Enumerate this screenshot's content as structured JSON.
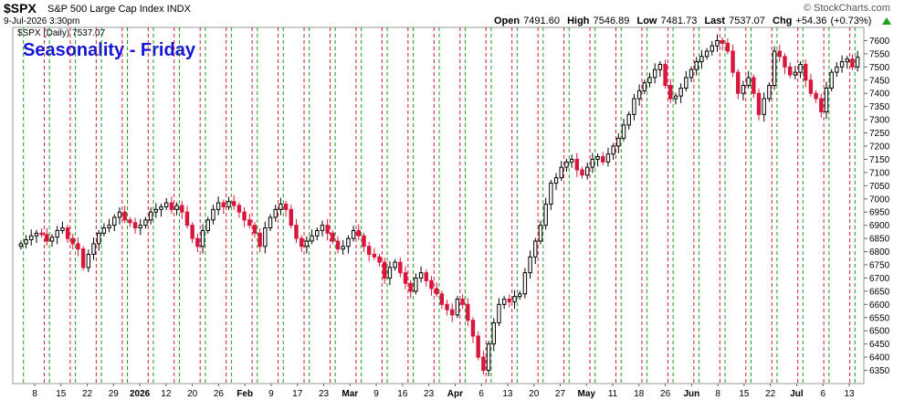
{
  "header": {
    "symbol": "$SPX",
    "description": "S&P 500 Large Cap Index  INDX",
    "date": "9-Jul-2026 3:30pm",
    "open_label": "Open",
    "open": "7491.60",
    "high_label": "High",
    "high": "7546.89",
    "low_label": "Low",
    "low": "7481.73",
    "last_label": "Last",
    "last": "7537.07",
    "chg_label": "Chg",
    "chg": "+54.36 (+0.73%)",
    "watermark": "© StockCharts.com",
    "legend": "$SPX (Daily) 7537.07",
    "overlay_title": "Seasonality - Friday"
  },
  "colors": {
    "up_candle": "#ffffff",
    "down_candle": "#d8163c",
    "friday_line": "#d8163c",
    "monday_line": "#1e9c1e",
    "overlay_title": "#1414d8",
    "chg_positive": "#20a020"
  },
  "chart_data": {
    "type": "candlestick",
    "title": "Seasonality - Friday",
    "ylim": [
      6300,
      7650
    ],
    "y_ticks": [
      6350,
      6400,
      6450,
      6500,
      6550,
      6600,
      6650,
      6700,
      6750,
      6800,
      6850,
      6900,
      6950,
      7000,
      7050,
      7100,
      7150,
      7200,
      7250,
      7300,
      7350,
      7400,
      7450,
      7500,
      7550,
      7600
    ],
    "x_tick_labels": [
      "8",
      "15",
      "22",
      "29",
      "2026",
      "12",
      "20",
      "26",
      "Feb",
      "9",
      "17",
      "23",
      "Mar",
      "9",
      "16",
      "23",
      "Apr",
      "6",
      "13",
      "20",
      "27",
      "May",
      "11",
      "18",
      "26",
      "Jun",
      "8",
      "15",
      "22",
      "Jul",
      "6",
      "13"
    ],
    "close": [
      6830,
      6845,
      6860,
      6870,
      6865,
      6840,
      6855,
      6880,
      6890,
      6850,
      6830,
      6810,
      6740,
      6790,
      6830,
      6870,
      6890,
      6900,
      6930,
      6950,
      6920,
      6910,
      6890,
      6900,
      6920,
      6950,
      6960,
      6970,
      6985,
      6960,
      6975,
      6950,
      6900,
      6850,
      6820,
      6880,
      6920,
      6960,
      6985,
      6970,
      6990,
      6975,
      6950,
      6920,
      6900,
      6870,
      6820,
      6890,
      6930,
      6960,
      6980,
      6960,
      6900,
      6850,
      6820,
      6840,
      6860,
      6880,
      6900,
      6870,
      6840,
      6810,
      6820,
      6850,
      6880,
      6860,
      6820,
      6790,
      6780,
      6760,
      6700,
      6740,
      6760,
      6720,
      6680,
      6650,
      6700,
      6720,
      6690,
      6660,
      6640,
      6600,
      6580,
      6560,
      6620,
      6600,
      6540,
      6480,
      6400,
      6350,
      6450,
      6530,
      6600,
      6620,
      6610,
      6630,
      6640,
      6720,
      6780,
      6840,
      6900,
      6980,
      7060,
      7080,
      7120,
      7140,
      7150,
      7110,
      7090,
      7120,
      7150,
      7160,
      7140,
      7170,
      7200,
      7230,
      7280,
      7320,
      7380,
      7410,
      7440,
      7460,
      7490,
      7510,
      7430,
      7380,
      7390,
      7420,
      7460,
      7490,
      7520,
      7540,
      7560,
      7580,
      7600,
      7590,
      7560,
      7480,
      7400,
      7430,
      7460,
      7400,
      7320,
      7380,
      7430,
      7560,
      7540,
      7500,
      7470,
      7480,
      7510,
      7450,
      7400,
      7380,
      7330,
      7420,
      7480,
      7500,
      7520,
      7530,
      7500,
      7537
    ]
  }
}
